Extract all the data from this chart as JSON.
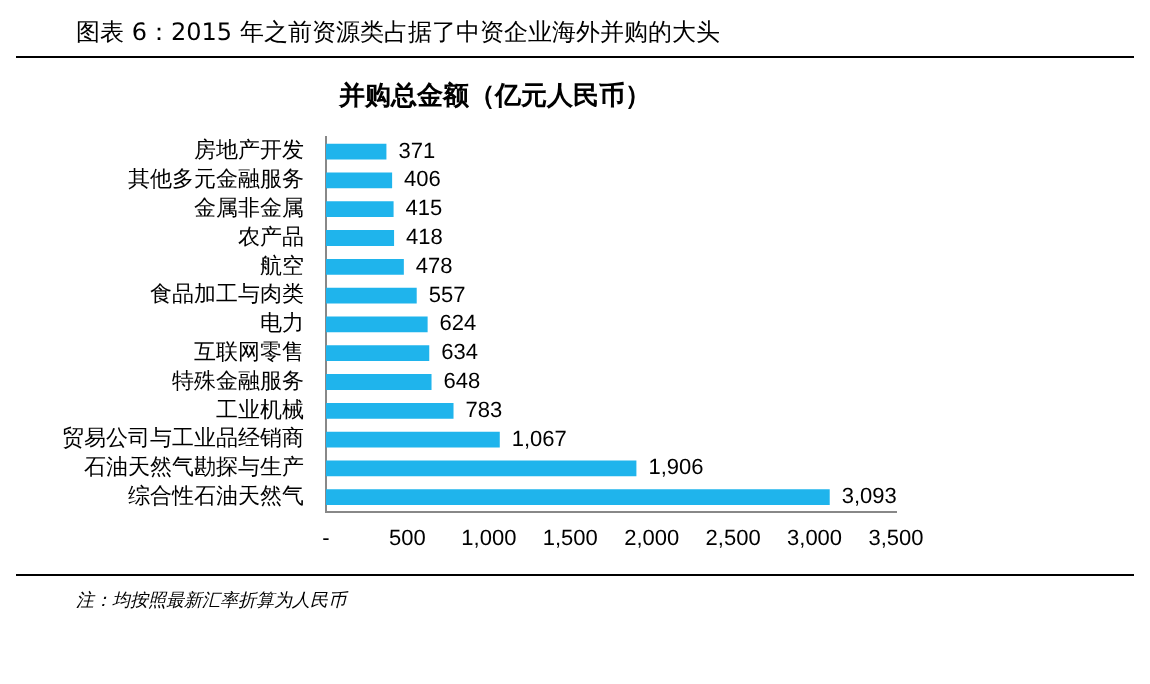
{
  "chart_data": {
    "type": "bar",
    "orientation": "horizontal",
    "title": "图表 6：2015 年之前资源类占据了中资企业海外并购的大头",
    "subtitle": "并购总金额（亿元人民币）",
    "categories": [
      "房地产开发",
      "其他多元金融服务",
      "金属非金属",
      "农产品",
      "航空",
      "食品加工与肉类",
      "电力",
      "互联网零售",
      "特殊金融服务",
      "工业机械",
      "贸易公司与工业品经销商",
      "石油天然气勘探与生产",
      "综合性石油天然气"
    ],
    "values": [
      371,
      406,
      415,
      418,
      478,
      557,
      624,
      634,
      648,
      783,
      1067,
      1906,
      3093
    ],
    "value_labels": [
      "371",
      "406",
      "415",
      "418",
      "478",
      "557",
      "624",
      "634",
      "648",
      "783",
      "1,067",
      "1,906",
      "3,093"
    ],
    "color": "#1fb4ec",
    "xlim": [
      0,
      3500
    ],
    "xticks": [
      {
        "value": 0,
        "label": "-"
      },
      500,
      {
        "value": 1000,
        "label": "1,000"
      },
      {
        "value": 1500,
        "label": "1,500"
      },
      {
        "value": 2000,
        "label": "2,000"
      },
      {
        "value": 2500,
        "label": "2,500"
      },
      {
        "value": 3000,
        "label": "3,000"
      },
      {
        "value": 3500,
        "label": "3,500"
      }
    ],
    "grid": false,
    "legend": false,
    "annotations": [
      "注：均按照最新汇率折算为人民币"
    ]
  }
}
